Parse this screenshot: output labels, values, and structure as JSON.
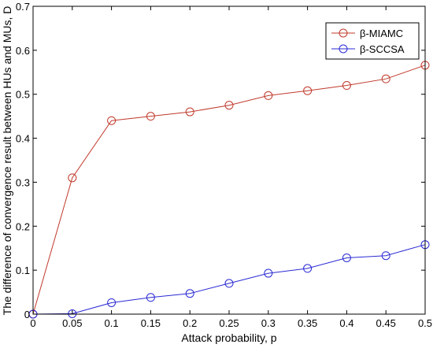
{
  "chart_data": {
    "type": "line",
    "title": "",
    "xlabel": "Attack probability, p",
    "ylabel": "The difference of convergence result between HUs and MUs, D",
    "xlim": [
      0,
      0.5
    ],
    "ylim": [
      0,
      0.7
    ],
    "x_ticks": [
      "0",
      "0.05",
      "0.1",
      "0.15",
      "0.2",
      "0.25",
      "0.3",
      "0.35",
      "0.4",
      "0.45",
      "0.5"
    ],
    "y_ticks": [
      "0",
      "0.1",
      "0.2",
      "0.3",
      "0.4",
      "0.5",
      "0.6",
      "0.7"
    ],
    "x": [
      0,
      0.05,
      0.1,
      0.15,
      0.2,
      0.25,
      0.3,
      0.35,
      0.4,
      0.45,
      0.5
    ],
    "series": [
      {
        "name": "β-MIAMC",
        "color": "#c0392b",
        "marker": "circle",
        "values": [
          0,
          0.31,
          0.44,
          0.45,
          0.46,
          0.475,
          0.497,
          0.508,
          0.52,
          0.535,
          0.566
        ]
      },
      {
        "name": "β-SCCSA",
        "color": "#2a2ad4",
        "marker": "circle",
        "values": [
          0,
          0.001,
          0.026,
          0.038,
          0.047,
          0.07,
          0.093,
          0.104,
          0.128,
          0.133,
          0.158
        ]
      }
    ],
    "grid": false,
    "legend_position": "top-right"
  }
}
